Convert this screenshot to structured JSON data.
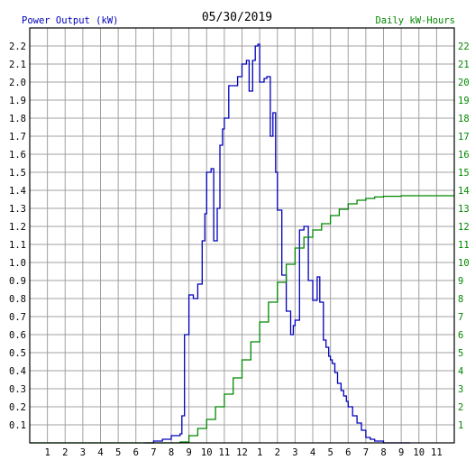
{
  "chart_data": {
    "type": "line",
    "title": "05/30/2019",
    "left_axis_label": "Power Output (kW)",
    "right_axis_label": "Daily kW-Hours",
    "x_tick_labels": [
      "1",
      "2",
      "3",
      "4",
      "5",
      "6",
      "7",
      "8",
      "9",
      "10",
      "11",
      "12",
      "1",
      "2",
      "3",
      "4",
      "5",
      "6",
      "7",
      "8",
      "9",
      "10",
      "11"
    ],
    "x_range_hours": [
      0,
      24
    ],
    "y_left_range": [
      0,
      2.3
    ],
    "y_left_ticks": [
      "0.1",
      "0.2",
      "0.3",
      "0.4",
      "0.5",
      "0.6",
      "0.7",
      "0.8",
      "0.9",
      "1.0",
      "1.1",
      "1.2",
      "1.3",
      "1.4",
      "1.5",
      "1.6",
      "1.7",
      "1.8",
      "1.9",
      "2.0",
      "2.1",
      "2.2"
    ],
    "y_right_range": [
      0,
      23
    ],
    "y_right_ticks": [
      "1",
      "2",
      "3",
      "4",
      "5",
      "6",
      "7",
      "8",
      "9",
      "10",
      "11",
      "12",
      "13",
      "14",
      "15",
      "16",
      "17",
      "18",
      "19",
      "20",
      "21",
      "22"
    ],
    "grid": true,
    "series": [
      {
        "axis": "left",
        "color": "#0000bb",
        "x": [
          6.5,
          7.0,
          7.5,
          8.0,
          8.5,
          8.6,
          8.75,
          9.0,
          9.25,
          9.5,
          9.75,
          9.9,
          10.0,
          10.25,
          10.4,
          10.6,
          10.75,
          10.9,
          11.0,
          11.25,
          11.5,
          11.75,
          12.0,
          12.25,
          12.4,
          12.6,
          12.75,
          12.9,
          13.0,
          13.25,
          13.4,
          13.5,
          13.6,
          13.75,
          13.9,
          14.0,
          14.25,
          14.5,
          14.75,
          14.9,
          15.0,
          15.25,
          15.5,
          15.75,
          16.0,
          16.25,
          16.4,
          16.6,
          16.75,
          16.9,
          17.0,
          17.1,
          17.25,
          17.4,
          17.6,
          17.75,
          17.9,
          18.0,
          18.25,
          18.5,
          18.75,
          19.0,
          19.25,
          19.5,
          19.75,
          20.0,
          20.25,
          20.5,
          20.75,
          21.0,
          21.5
        ],
        "y": [
          0.0,
          0.01,
          0.02,
          0.04,
          0.05,
          0.15,
          0.6,
          0.82,
          0.8,
          0.88,
          1.12,
          1.27,
          1.5,
          1.52,
          1.12,
          1.3,
          1.65,
          1.74,
          1.8,
          1.98,
          1.98,
          2.03,
          2.1,
          2.12,
          1.95,
          2.12,
          2.2,
          2.21,
          2.0,
          2.02,
          2.03,
          2.03,
          1.7,
          1.83,
          1.5,
          1.29,
          0.93,
          0.73,
          0.6,
          0.65,
          0.68,
          1.18,
          1.2,
          0.9,
          0.79,
          0.92,
          0.78,
          0.57,
          0.53,
          0.48,
          0.46,
          0.44,
          0.39,
          0.33,
          0.29,
          0.26,
          0.23,
          0.2,
          0.15,
          0.11,
          0.07,
          0.03,
          0.02,
          0.01,
          0.01,
          0.0,
          0.0,
          0.0,
          0.0,
          0.0,
          0.0
        ]
      },
      {
        "axis": "right",
        "color": "#008800",
        "x": [
          0,
          8,
          8.5,
          9,
          9.5,
          10,
          10.5,
          11,
          11.5,
          12,
          12.5,
          13,
          13.5,
          14,
          14.5,
          15,
          15.5,
          16,
          16.5,
          17,
          17.5,
          18,
          18.5,
          19,
          19.5,
          20,
          21,
          22,
          23,
          24
        ],
        "y": [
          0,
          0,
          0.05,
          0.4,
          0.8,
          1.3,
          2.0,
          2.7,
          3.6,
          4.6,
          5.6,
          6.7,
          7.8,
          8.9,
          9.9,
          10.8,
          11.4,
          11.8,
          12.15,
          12.6,
          12.95,
          13.25,
          13.45,
          13.55,
          13.63,
          13.67,
          13.7,
          13.7,
          13.7,
          13.7
        ]
      }
    ]
  }
}
